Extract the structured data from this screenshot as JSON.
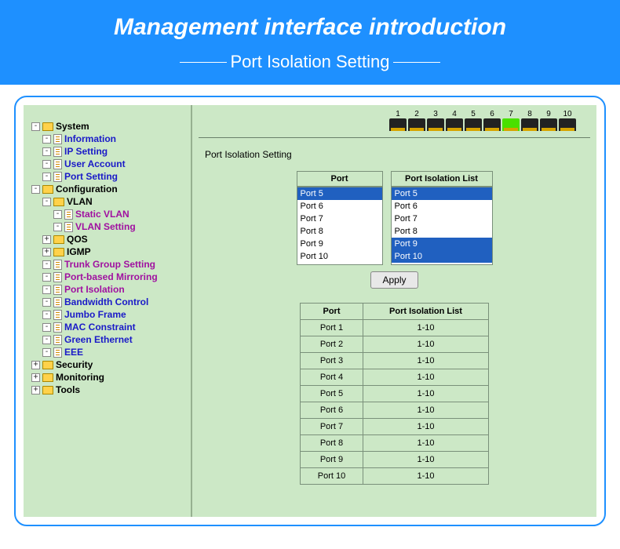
{
  "banner": {
    "title": "Management interface introduction",
    "subtitle": "Port Isolation Setting"
  },
  "colors": {
    "banner_bg": "#1e90ff",
    "app_bg": "#cce8c6",
    "link_normal": "#1a1ac8",
    "link_active": "#a010a0"
  },
  "tree": [
    {
      "label": "System",
      "type": "folder",
      "open": true,
      "children": [
        {
          "label": "Information",
          "type": "page"
        },
        {
          "label": "IP Setting",
          "type": "page"
        },
        {
          "label": "User Account",
          "type": "page"
        },
        {
          "label": "Port Setting",
          "type": "page"
        }
      ]
    },
    {
      "label": "Configuration",
      "type": "folder",
      "open": true,
      "children": [
        {
          "label": "VLAN",
          "type": "folder",
          "open": true,
          "children": [
            {
              "label": "Static VLAN",
              "type": "page",
              "active": true
            },
            {
              "label": "VLAN Setting",
              "type": "page",
              "active": true
            }
          ]
        },
        {
          "label": "QOS",
          "type": "folder",
          "open": false
        },
        {
          "label": "IGMP",
          "type": "folder",
          "open": false
        },
        {
          "label": "Trunk Group Setting",
          "type": "page",
          "active": true
        },
        {
          "label": "Port-based Mirroring",
          "type": "page",
          "active": true
        },
        {
          "label": "Port Isolation",
          "type": "page",
          "active": true
        },
        {
          "label": "Bandwidth Control",
          "type": "page"
        },
        {
          "label": "Jumbo Frame",
          "type": "page"
        },
        {
          "label": "MAC Constraint",
          "type": "page"
        },
        {
          "label": "Green Ethernet",
          "type": "page"
        },
        {
          "label": "EEE",
          "type": "page"
        }
      ]
    },
    {
      "label": "Security",
      "type": "folder",
      "open": false
    },
    {
      "label": "Monitoring",
      "type": "folder",
      "open": false
    },
    {
      "label": "Tools",
      "type": "folder",
      "open": false
    }
  ],
  "ports_strip": {
    "count": 10,
    "active": [
      7
    ]
  },
  "section_title": "Port Isolation Setting",
  "selectors": {
    "port": {
      "header": "Port",
      "options": [
        "Port 5",
        "Port 6",
        "Port 7",
        "Port 8",
        "Port 9",
        "Port 10"
      ],
      "selected": [
        "Port 5"
      ]
    },
    "isolation": {
      "header": "Port Isolation List",
      "options": [
        "Port 5",
        "Port 6",
        "Port 7",
        "Port 8",
        "Port 9",
        "Port 10"
      ],
      "selected": [
        "Port 5",
        "Port 9",
        "Port 10"
      ]
    }
  },
  "apply_label": "Apply",
  "result_table": {
    "headers": [
      "Port",
      "Port Isolation List"
    ],
    "rows": [
      [
        "Port 1",
        "1-10"
      ],
      [
        "Port 2",
        "1-10"
      ],
      [
        "Port 3",
        "1-10"
      ],
      [
        "Port 4",
        "1-10"
      ],
      [
        "Port 5",
        "1-10"
      ],
      [
        "Port 6",
        "1-10"
      ],
      [
        "Port 7",
        "1-10"
      ],
      [
        "Port 8",
        "1-10"
      ],
      [
        "Port 9",
        "1-10"
      ],
      [
        "Port 10",
        "1-10"
      ]
    ]
  }
}
